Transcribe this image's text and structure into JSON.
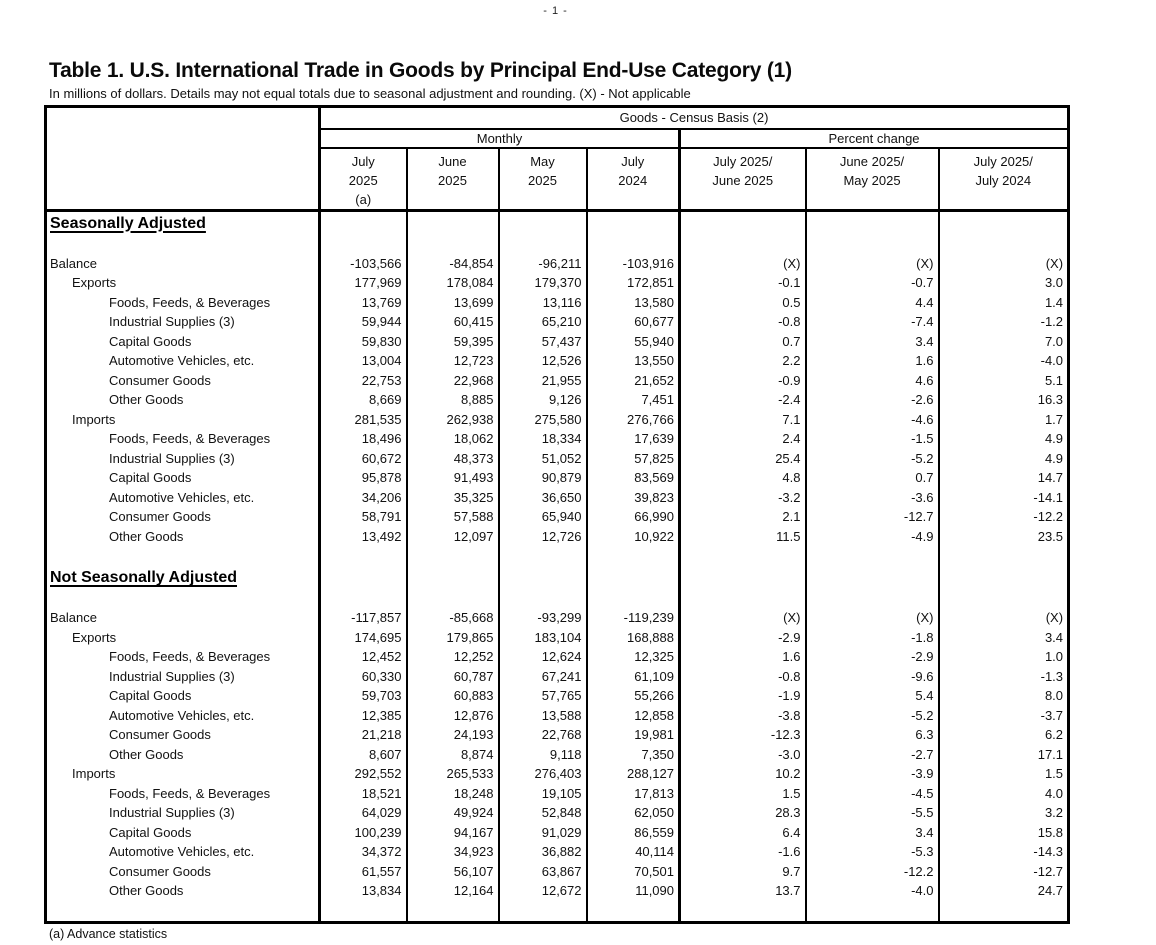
{
  "page": {
    "page_number": "- 1 -",
    "title": "Table 1. U.S. International Trade in Goods by Principal End-Use Category (1)",
    "subtitle": "In millions of dollars. Details may not equal totals due to seasonal adjustment and rounding. (X) - Not applicable",
    "footnote": "(a) Advance statistics"
  },
  "table": {
    "spanner": "Goods - Census Basis (2)",
    "group_headers": {
      "monthly": "Monthly",
      "percent_change": "Percent change"
    },
    "columns": [
      {
        "lines": [
          "July",
          "2025",
          "(a)"
        ]
      },
      {
        "lines": [
          "June",
          "2025",
          ""
        ]
      },
      {
        "lines": [
          "May",
          "2025",
          ""
        ]
      },
      {
        "lines": [
          "July",
          "2024",
          ""
        ]
      },
      {
        "lines": [
          "July 2025/",
          "June 2025",
          ""
        ]
      },
      {
        "lines": [
          "June 2025/",
          "May 2025",
          ""
        ]
      },
      {
        "lines": [
          "July 2025/",
          "July 2024",
          ""
        ]
      }
    ],
    "sections": [
      {
        "heading": "Seasonally Adjusted",
        "rows": [
          {
            "label": "Balance",
            "indent": 0,
            "values": [
              "-103,566",
              "-84,854",
              "-96,211",
              "-103,916",
              "(X)",
              "(X)",
              "(X)"
            ]
          },
          {
            "label": "Exports",
            "indent": 1,
            "values": [
              "177,969",
              "178,084",
              "179,370",
              "172,851",
              "-0.1",
              "-0.7",
              "3.0"
            ]
          },
          {
            "label": "Foods, Feeds, & Beverages",
            "indent": 2,
            "values": [
              "13,769",
              "13,699",
              "13,116",
              "13,580",
              "0.5",
              "4.4",
              "1.4"
            ]
          },
          {
            "label": "Industrial Supplies (3)",
            "indent": 2,
            "values": [
              "59,944",
              "60,415",
              "65,210",
              "60,677",
              "-0.8",
              "-7.4",
              "-1.2"
            ]
          },
          {
            "label": "Capital Goods",
            "indent": 2,
            "values": [
              "59,830",
              "59,395",
              "57,437",
              "55,940",
              "0.7",
              "3.4",
              "7.0"
            ]
          },
          {
            "label": "Automotive Vehicles, etc.",
            "indent": 2,
            "values": [
              "13,004",
              "12,723",
              "12,526",
              "13,550",
              "2.2",
              "1.6",
              "-4.0"
            ]
          },
          {
            "label": "Consumer Goods",
            "indent": 2,
            "values": [
              "22,753",
              "22,968",
              "21,955",
              "21,652",
              "-0.9",
              "4.6",
              "5.1"
            ]
          },
          {
            "label": "Other Goods",
            "indent": 2,
            "values": [
              "8,669",
              "8,885",
              "9,126",
              "7,451",
              "-2.4",
              "-2.6",
              "16.3"
            ]
          },
          {
            "label": "Imports",
            "indent": 1,
            "values": [
              "281,535",
              "262,938",
              "275,580",
              "276,766",
              "7.1",
              "-4.6",
              "1.7"
            ]
          },
          {
            "label": "Foods, Feeds, & Beverages",
            "indent": 2,
            "values": [
              "18,496",
              "18,062",
              "18,334",
              "17,639",
              "2.4",
              "-1.5",
              "4.9"
            ]
          },
          {
            "label": "Industrial Supplies (3)",
            "indent": 2,
            "values": [
              "60,672",
              "48,373",
              "51,052",
              "57,825",
              "25.4",
              "-5.2",
              "4.9"
            ]
          },
          {
            "label": "Capital Goods",
            "indent": 2,
            "values": [
              "95,878",
              "91,493",
              "90,879",
              "83,569",
              "4.8",
              "0.7",
              "14.7"
            ]
          },
          {
            "label": "Automotive Vehicles, etc.",
            "indent": 2,
            "values": [
              "34,206",
              "35,325",
              "36,650",
              "39,823",
              "-3.2",
              "-3.6",
              "-14.1"
            ]
          },
          {
            "label": "Consumer Goods",
            "indent": 2,
            "values": [
              "58,791",
              "57,588",
              "65,940",
              "66,990",
              "2.1",
              "-12.7",
              "-12.2"
            ]
          },
          {
            "label": "Other Goods",
            "indent": 2,
            "values": [
              "13,492",
              "12,097",
              "12,726",
              "10,922",
              "11.5",
              "-4.9",
              "23.5"
            ]
          }
        ]
      },
      {
        "heading": "Not Seasonally Adjusted",
        "rows": [
          {
            "label": "Balance",
            "indent": 0,
            "values": [
              "-117,857",
              "-85,668",
              "-93,299",
              "-119,239",
              "(X)",
              "(X)",
              "(X)"
            ]
          },
          {
            "label": "Exports",
            "indent": 1,
            "values": [
              "174,695",
              "179,865",
              "183,104",
              "168,888",
              "-2.9",
              "-1.8",
              "3.4"
            ]
          },
          {
            "label": "Foods, Feeds, & Beverages",
            "indent": 2,
            "values": [
              "12,452",
              "12,252",
              "12,624",
              "12,325",
              "1.6",
              "-2.9",
              "1.0"
            ]
          },
          {
            "label": "Industrial Supplies (3)",
            "indent": 2,
            "values": [
              "60,330",
              "60,787",
              "67,241",
              "61,109",
              "-0.8",
              "-9.6",
              "-1.3"
            ]
          },
          {
            "label": "Capital Goods",
            "indent": 2,
            "values": [
              "59,703",
              "60,883",
              "57,765",
              "55,266",
              "-1.9",
              "5.4",
              "8.0"
            ]
          },
          {
            "label": "Automotive Vehicles, etc.",
            "indent": 2,
            "values": [
              "12,385",
              "12,876",
              "13,588",
              "12,858",
              "-3.8",
              "-5.2",
              "-3.7"
            ]
          },
          {
            "label": "Consumer Goods",
            "indent": 2,
            "values": [
              "21,218",
              "24,193",
              "22,768",
              "19,981",
              "-12.3",
              "6.3",
              "6.2"
            ]
          },
          {
            "label": "Other Goods",
            "indent": 2,
            "values": [
              "8,607",
              "8,874",
              "9,118",
              "7,350",
              "-3.0",
              "-2.7",
              "17.1"
            ]
          },
          {
            "label": "Imports",
            "indent": 1,
            "values": [
              "292,552",
              "265,533",
              "276,403",
              "288,127",
              "10.2",
              "-3.9",
              "1.5"
            ]
          },
          {
            "label": "Foods, Feeds, & Beverages",
            "indent": 2,
            "values": [
              "18,521",
              "18,248",
              "19,105",
              "17,813",
              "1.5",
              "-4.5",
              "4.0"
            ]
          },
          {
            "label": "Industrial Supplies (3)",
            "indent": 2,
            "values": [
              "64,029",
              "49,924",
              "52,848",
              "62,050",
              "28.3",
              "-5.5",
              "3.2"
            ]
          },
          {
            "label": "Capital Goods",
            "indent": 2,
            "values": [
              "100,239",
              "94,167",
              "91,029",
              "86,559",
              "6.4",
              "3.4",
              "15.8"
            ]
          },
          {
            "label": "Automotive Vehicles, etc.",
            "indent": 2,
            "values": [
              "34,372",
              "34,923",
              "36,882",
              "40,114",
              "-1.6",
              "-5.3",
              "-14.3"
            ]
          },
          {
            "label": "Consumer Goods",
            "indent": 2,
            "values": [
              "61,557",
              "56,107",
              "63,867",
              "70,501",
              "9.7",
              "-12.2",
              "-12.7"
            ]
          },
          {
            "label": "Other Goods",
            "indent": 2,
            "values": [
              "13,834",
              "12,164",
              "12,672",
              "11,090",
              "13.7",
              "-4.0",
              "24.7"
            ]
          }
        ]
      }
    ]
  }
}
